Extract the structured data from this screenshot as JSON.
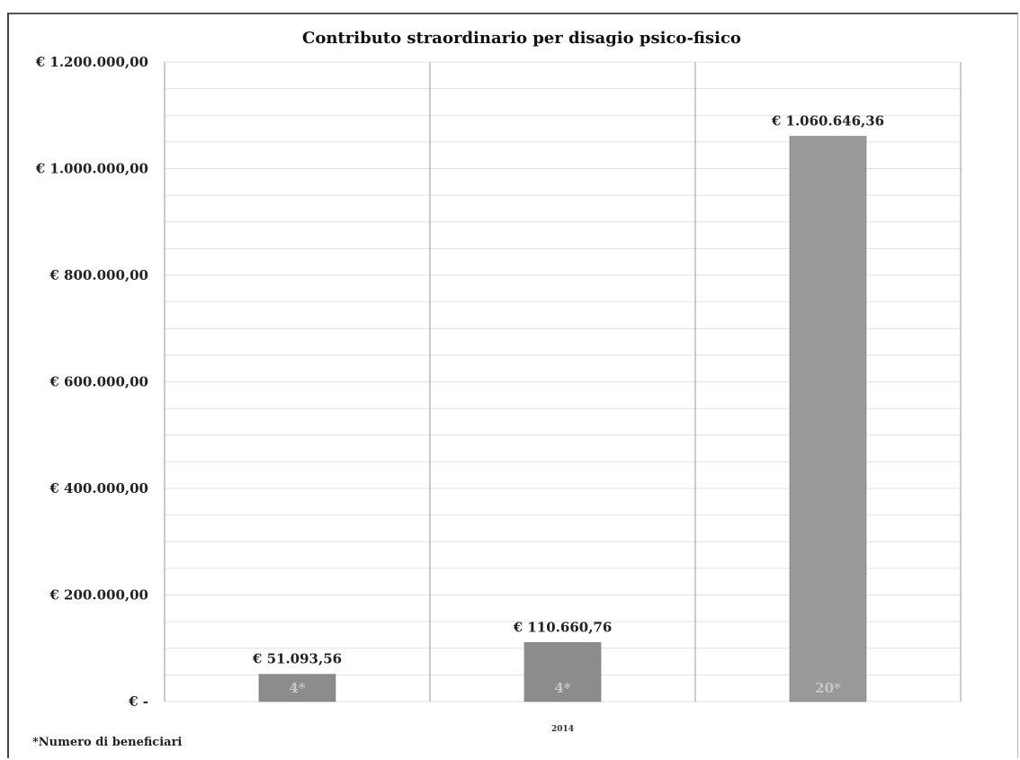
{
  "chart_data": {
    "type": "bar",
    "title": "Contributo straordinario per disagio psico-fisico",
    "categories": [
      "",
      "2014",
      ""
    ],
    "x_tick_labels": [
      "",
      "2014",
      ""
    ],
    "values": [
      51093.56,
      110660.76,
      1060646.36
    ],
    "data_labels": [
      "€ 51.093,56",
      "€ 110.660,76",
      "€ 1.060.646,36"
    ],
    "beneficiaries": [
      "4*",
      "4*",
      "20*"
    ],
    "ylim": [
      0,
      1200000
    ],
    "y_ticks": [
      {
        "value": 0,
        "label": "€ -"
      },
      {
        "value": 200000,
        "label": "€ 200.000,00"
      },
      {
        "value": 400000,
        "label": "€ 400.000,00"
      },
      {
        "value": 600000,
        "label": "€ 600.000,00"
      },
      {
        "value": 800000,
        "label": "€ 800.000,00"
      },
      {
        "value": 1000000,
        "label": "€ 1.000.000,00"
      },
      {
        "value": 1200000,
        "label": "€ 1.200.000,00"
      }
    ],
    "xlabel": "",
    "ylabel": "",
    "grid": true,
    "colors": {
      "bar": "#8c8c8c",
      "bar_tall": "#999999",
      "grid": "#e2e2e2",
      "divider": "#9a9a9a"
    }
  },
  "footnote": "*Numero di beneficiari"
}
